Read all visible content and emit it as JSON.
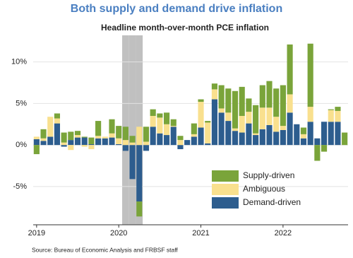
{
  "chart_data": {
    "type": "stacked_bar",
    "title": "Both supply and demand drive inflation",
    "subtitle": "Headline month-over-month PCE inflation",
    "source": "Source: Bureau of Economic Analysis and FRBSF staff",
    "categories": [
      "2019",
      null,
      null,
      null,
      null,
      null,
      null,
      null,
      null,
      null,
      null,
      null,
      "2020",
      null,
      null,
      null,
      null,
      null,
      null,
      null,
      null,
      null,
      null,
      null,
      "2021",
      null,
      null,
      null,
      null,
      null,
      null,
      null,
      null,
      null,
      null,
      null,
      "2022",
      null,
      null,
      null,
      null,
      null,
      null,
      null,
      null,
      null
    ],
    "series": [
      {
        "name": "Demand-driven",
        "color": "#2d5d8e",
        "values": [
          0.7,
          0.5,
          1.0,
          2.6,
          -0.2,
          0.6,
          0.9,
          0.9,
          0.1,
          0.8,
          0.8,
          0.9,
          0.1,
          -0.7,
          -4.1,
          -6.8,
          -0.7,
          2.2,
          1.4,
          1.2,
          2.2,
          -0.5,
          0.6,
          1.0,
          2.1,
          0.2,
          5.5,
          3.9,
          2.9,
          1.7,
          1.5,
          2.6,
          1.2,
          1.9,
          2.4,
          1.6,
          1.8,
          3.9,
          2.5,
          0.8,
          2.8,
          0.8,
          2.8,
          2.8,
          2.8,
          0
        ]
      },
      {
        "name": "Ambiguous",
        "color": "#f9e08e",
        "values": [
          0.3,
          0.3,
          2.4,
          0.6,
          0.3,
          -0.6,
          0.3,
          -0.2,
          -0.5,
          0.3,
          0.2,
          0.5,
          0.7,
          0.6,
          0.3,
          2.2,
          0.4,
          1.3,
          1.9,
          1.3,
          0.1,
          0.6,
          0,
          0.3,
          3.1,
          2.5,
          1.2,
          0.5,
          1.0,
          0.3,
          2.0,
          1.4,
          0.2,
          2.6,
          2.1,
          1.8,
          0.5,
          2.2,
          0,
          0.5,
          1.8,
          0,
          0,
          1.4,
          1.3,
          0
        ]
      },
      {
        "name": "Supply-driven",
        "color": "#7aa43a",
        "values": [
          -1.1,
          1.1,
          0,
          0.6,
          1.2,
          1.0,
          0.5,
          0.1,
          0.8,
          1.8,
          0,
          1.7,
          1.5,
          1.6,
          0.8,
          -1.8,
          1.8,
          0.8,
          0.5,
          1.4,
          0.8,
          0.5,
          0,
          1.3,
          0.3,
          0.2,
          0.7,
          2.8,
          2.9,
          4.5,
          3.5,
          1.6,
          3.4,
          2.7,
          3.2,
          3.4,
          4.9,
          6.0,
          0,
          0.8,
          7.6,
          -1.9,
          -0.8,
          0.1,
          0.5,
          1.5
        ]
      }
    ],
    "shaded_categories": [
      13,
      14,
      15
    ],
    "shade_color": "#c0c0c0",
    "ylim": [
      -9.6,
      13.2
    ],
    "yticks": [
      {
        "value": -5,
        "label": "-5%"
      },
      {
        "value": 0,
        "label": "0%"
      },
      {
        "value": 5,
        "label": "5%"
      },
      {
        "value": 10,
        "label": "10%"
      }
    ],
    "grid": true,
    "legend": "lower right"
  }
}
